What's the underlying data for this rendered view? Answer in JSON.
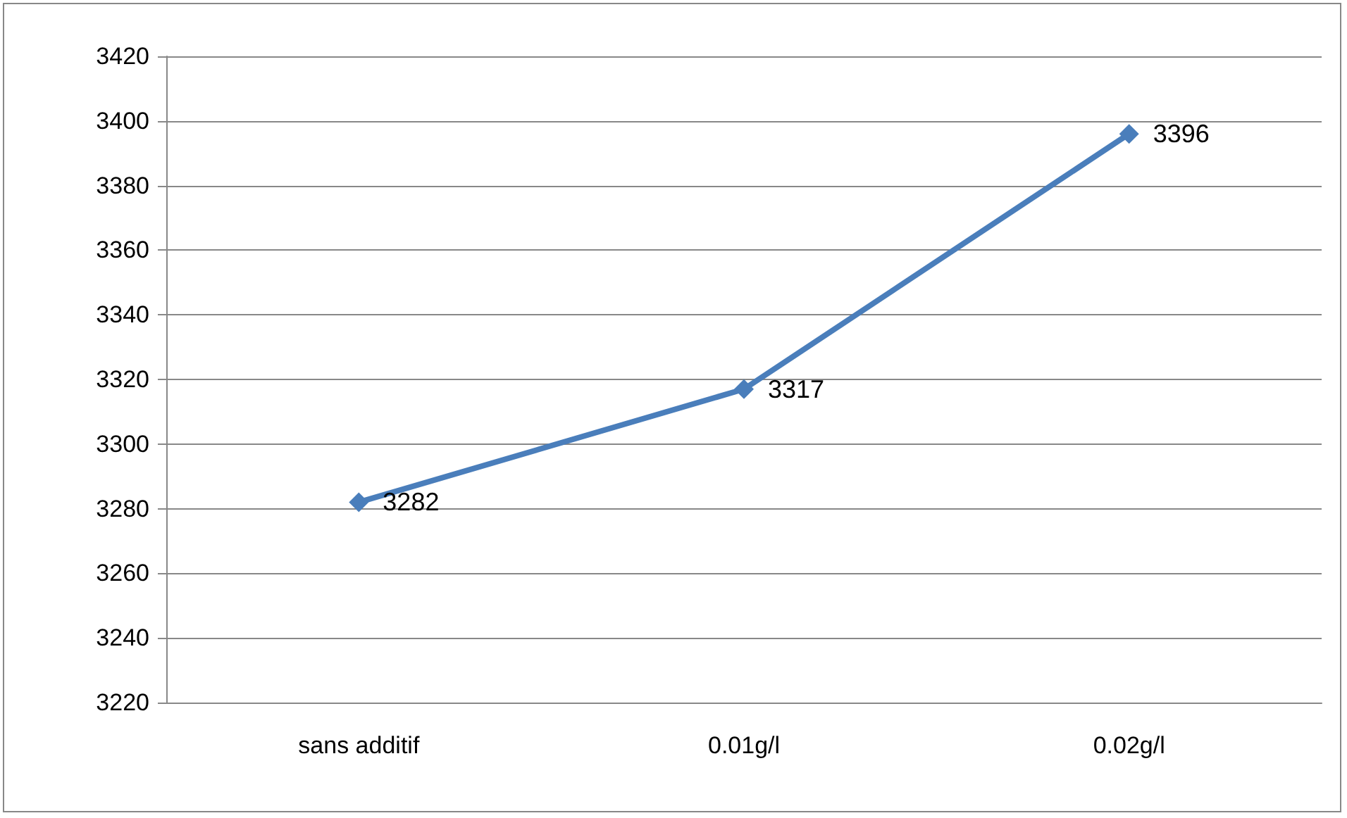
{
  "chart_data": {
    "type": "line",
    "categories": [
      "sans additif",
      "0.01g/l",
      "0.02g/l"
    ],
    "series": [
      {
        "color": "#4a7ebb",
        "values": [
          3282,
          3317,
          3396
        ]
      }
    ],
    "ylim": [
      3220,
      3420
    ],
    "yticks": [
      3220,
      3240,
      3260,
      3280,
      3300,
      3320,
      3340,
      3360,
      3380,
      3400,
      3420
    ],
    "grid": "y",
    "marker": "diamond",
    "line_style": "solid",
    "data_labels": true
  }
}
